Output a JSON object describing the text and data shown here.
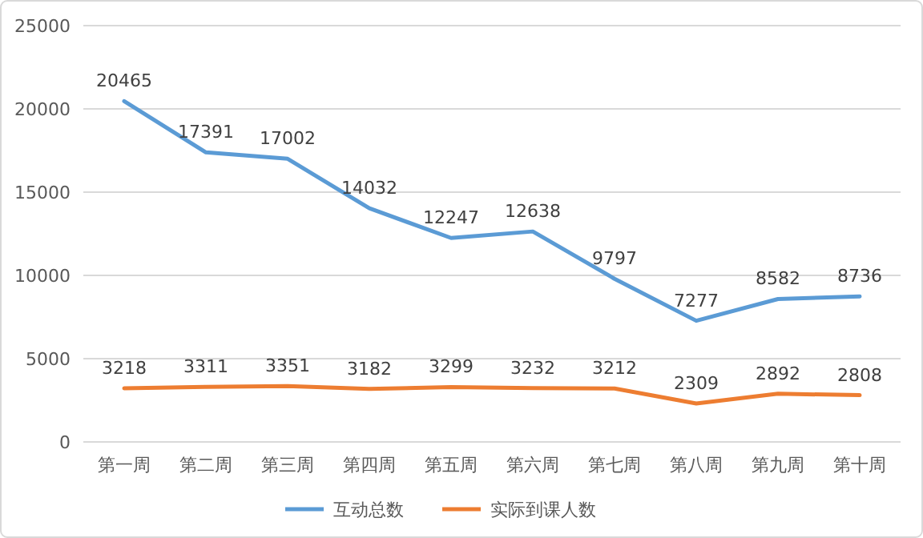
{
  "chart_data": {
    "type": "line",
    "categories": [
      "第一周",
      "第二周",
      "第三周",
      "第四周",
      "第五周",
      "第六周",
      "第七周",
      "第八周",
      "第九周",
      "第十周"
    ],
    "series": [
      {
        "name": "互动总数",
        "color": "#5b9bd5",
        "values": [
          20465,
          17391,
          17002,
          14032,
          12247,
          12638,
          9797,
          7277,
          8582,
          8736
        ]
      },
      {
        "name": "实际到课人数",
        "color": "#ed7d31",
        "values": [
          3218,
          3311,
          3351,
          3182,
          3299,
          3232,
          3212,
          2309,
          2892,
          2808
        ]
      }
    ],
    "ylim": [
      0,
      25000
    ],
    "yticks": [
      0,
      5000,
      10000,
      15000,
      20000,
      25000
    ],
    "grid": "y",
    "legend": "bottom",
    "data_labels": true,
    "marker": "none",
    "line_style": "solid"
  }
}
